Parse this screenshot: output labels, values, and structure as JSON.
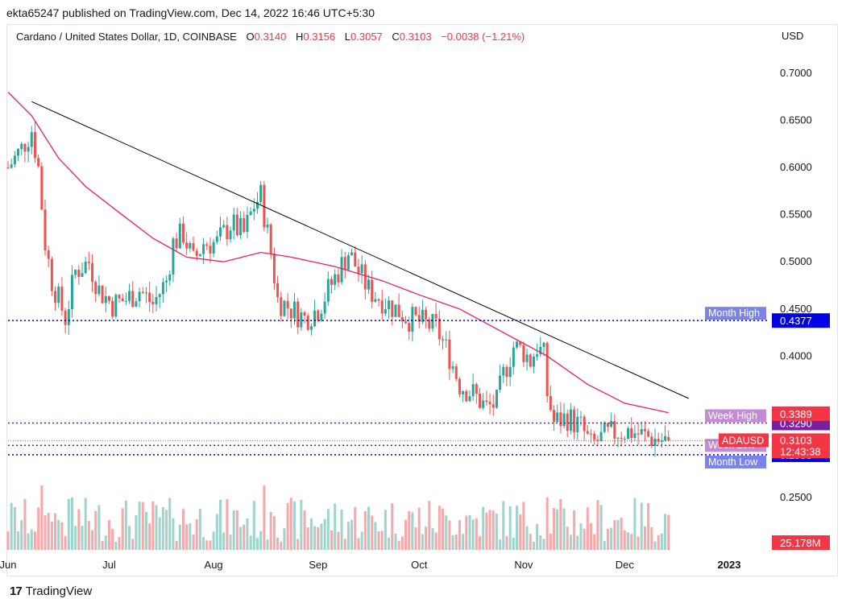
{
  "header": {
    "published_text": "ekta65247 published on TradingView.com, Dec 14, 2022 16:46 UTC+5:30"
  },
  "legend": {
    "symbol": "Cardano / United States Dollar, 1D, COINBASE",
    "o_label": "O",
    "o_value": "0.3140",
    "h_label": "H",
    "h_value": "0.3156",
    "l_label": "L",
    "l_value": "0.3057",
    "c_label": "C",
    "c_value": "0.3103",
    "change": "−0.0038 (−1.21%)"
  },
  "axis": {
    "currency": "USD"
  },
  "footer": {
    "brand_logo": "17",
    "brand_name": "TradingView"
  },
  "colors": {
    "up": "#26a69a",
    "down": "#ef5350",
    "ma": "#e91e63",
    "trendline": "#000000",
    "month_line": "#0000aa",
    "week_line": "#7b1fa2",
    "month_label_bg": "#7b83eb",
    "week_label_bg": "#c48ad3"
  },
  "chart_data": {
    "type": "candlestick",
    "symbol": "ADAUSD",
    "x_ticks": [
      "Jun",
      "Jul",
      "Aug",
      "Sep",
      "Oct",
      "Nov",
      "Dec",
      "2023"
    ],
    "y_ticks": [
      "0.7000",
      "0.6500",
      "0.6000",
      "0.5500",
      "0.5000",
      "0.4500",
      "0.4000",
      "0.2500"
    ],
    "ylim": [
      0.238,
      0.718
    ],
    "price_series": [
      {
        "date": "2022-06-01",
        "close": 0.6
      },
      {
        "date": "2022-06-05",
        "close": 0.62
      },
      {
        "date": "2022-06-08",
        "close": 0.64
      },
      {
        "date": "2022-06-10",
        "close": 0.6
      },
      {
        "date": "2022-06-12",
        "close": 0.52
      },
      {
        "date": "2022-06-14",
        "close": 0.48
      },
      {
        "date": "2022-06-16",
        "close": 0.46
      },
      {
        "date": "2022-06-18",
        "close": 0.44
      },
      {
        "date": "2022-06-21",
        "close": 0.49
      },
      {
        "date": "2022-06-25",
        "close": 0.5
      },
      {
        "date": "2022-06-28",
        "close": 0.47
      },
      {
        "date": "2022-07-02",
        "close": 0.455
      },
      {
        "date": "2022-07-06",
        "close": 0.46
      },
      {
        "date": "2022-07-10",
        "close": 0.47
      },
      {
        "date": "2022-07-14",
        "close": 0.455
      },
      {
        "date": "2022-07-18",
        "close": 0.48
      },
      {
        "date": "2022-07-20",
        "close": 0.52
      },
      {
        "date": "2022-07-23",
        "close": 0.53
      },
      {
        "date": "2022-07-26",
        "close": 0.5
      },
      {
        "date": "2022-07-29",
        "close": 0.52
      },
      {
        "date": "2022-08-02",
        "close": 0.52
      },
      {
        "date": "2022-08-06",
        "close": 0.54
      },
      {
        "date": "2022-08-10",
        "close": 0.53
      },
      {
        "date": "2022-08-13",
        "close": 0.56
      },
      {
        "date": "2022-08-15",
        "close": 0.57
      },
      {
        "date": "2022-08-18",
        "close": 0.51
      },
      {
        "date": "2022-08-20",
        "close": 0.46
      },
      {
        "date": "2022-08-24",
        "close": 0.45
      },
      {
        "date": "2022-08-28",
        "close": 0.44
      },
      {
        "date": "2022-09-01",
        "close": 0.45
      },
      {
        "date": "2022-09-04",
        "close": 0.47
      },
      {
        "date": "2022-09-07",
        "close": 0.49
      },
      {
        "date": "2022-09-10",
        "close": 0.51
      },
      {
        "date": "2022-09-13",
        "close": 0.49
      },
      {
        "date": "2022-09-16",
        "close": 0.47
      },
      {
        "date": "2022-09-20",
        "close": 0.46
      },
      {
        "date": "2022-09-24",
        "close": 0.45
      },
      {
        "date": "2022-09-28",
        "close": 0.44
      },
      {
        "date": "2022-10-02",
        "close": 0.435
      },
      {
        "date": "2022-10-06",
        "close": 0.43
      },
      {
        "date": "2022-10-10",
        "close": 0.4
      },
      {
        "date": "2022-10-13",
        "close": 0.37
      },
      {
        "date": "2022-10-17",
        "close": 0.36
      },
      {
        "date": "2022-10-21",
        "close": 0.345
      },
      {
        "date": "2022-10-24",
        "close": 0.35
      },
      {
        "date": "2022-10-26",
        "close": 0.38
      },
      {
        "date": "2022-10-29",
        "close": 0.41
      },
      {
        "date": "2022-11-01",
        "close": 0.405
      },
      {
        "date": "2022-11-03",
        "close": 0.395
      },
      {
        "date": "2022-11-05",
        "close": 0.41
      },
      {
        "date": "2022-11-07",
        "close": 0.4
      },
      {
        "date": "2022-11-08",
        "close": 0.36
      },
      {
        "date": "2022-11-10",
        "close": 0.33
      },
      {
        "date": "2022-11-14",
        "close": 0.335
      },
      {
        "date": "2022-11-18",
        "close": 0.325
      },
      {
        "date": "2022-11-21",
        "close": 0.305
      },
      {
        "date": "2022-11-25",
        "close": 0.315
      },
      {
        "date": "2022-11-29",
        "close": 0.32
      },
      {
        "date": "2022-12-03",
        "close": 0.32
      },
      {
        "date": "2022-12-07",
        "close": 0.315
      },
      {
        "date": "2022-12-10",
        "close": 0.312
      },
      {
        "date": "2022-12-14",
        "close": 0.3103
      }
    ],
    "ma_series": [
      {
        "date": "2022-06-01",
        "value": 0.68
      },
      {
        "date": "2022-06-08",
        "value": 0.655
      },
      {
        "date": "2022-06-16",
        "value": 0.61
      },
      {
        "date": "2022-06-24",
        "value": 0.58
      },
      {
        "date": "2022-07-03",
        "value": 0.555
      },
      {
        "date": "2022-07-14",
        "value": 0.525
      },
      {
        "date": "2022-07-24",
        "value": 0.505
      },
      {
        "date": "2022-08-04",
        "value": 0.5
      },
      {
        "date": "2022-08-15",
        "value": 0.51
      },
      {
        "date": "2022-08-24",
        "value": 0.505
      },
      {
        "date": "2022-09-06",
        "value": 0.495
      },
      {
        "date": "2022-09-20",
        "value": 0.48
      },
      {
        "date": "2022-10-01",
        "value": 0.465
      },
      {
        "date": "2022-10-13",
        "value": 0.45
      },
      {
        "date": "2022-10-26",
        "value": 0.425
      },
      {
        "date": "2022-11-08",
        "value": 0.4
      },
      {
        "date": "2022-11-20",
        "value": 0.37
      },
      {
        "date": "2022-12-01",
        "value": 0.35
      },
      {
        "date": "2022-12-14",
        "value": 0.34
      }
    ],
    "trendline": {
      "start": {
        "date": "2022-06-08",
        "value": 0.67
      },
      "end": {
        "date": "2022-12-20",
        "value": 0.355
      }
    },
    "levels": [
      {
        "name": "Month High",
        "value": 0.4377,
        "label": "0.4377",
        "style": "month"
      },
      {
        "name": "Week High",
        "value": 0.329,
        "label": "0.3290",
        "style": "week"
      },
      {
        "name": "Week Low",
        "value": 0.3053,
        "label": "0.3053",
        "style": "week"
      },
      {
        "name": "Month Low",
        "value": 0.2953,
        "label": "0.2953",
        "style": "month"
      }
    ],
    "price_tags": [
      {
        "text": "0.3389",
        "value": 0.3389,
        "color": "#f23645"
      },
      {
        "text": "ADAUSD",
        "value": 0.3103,
        "color": "#f23645"
      },
      {
        "text": "0.3103",
        "value": 0.3103,
        "color": "#f23645"
      },
      {
        "text": "12:43:38",
        "value": 0.3103,
        "color": "#f23645"
      }
    ],
    "volume": {
      "last_label": "25.178M",
      "color": "#f23645"
    },
    "volume_seed": 7
  }
}
